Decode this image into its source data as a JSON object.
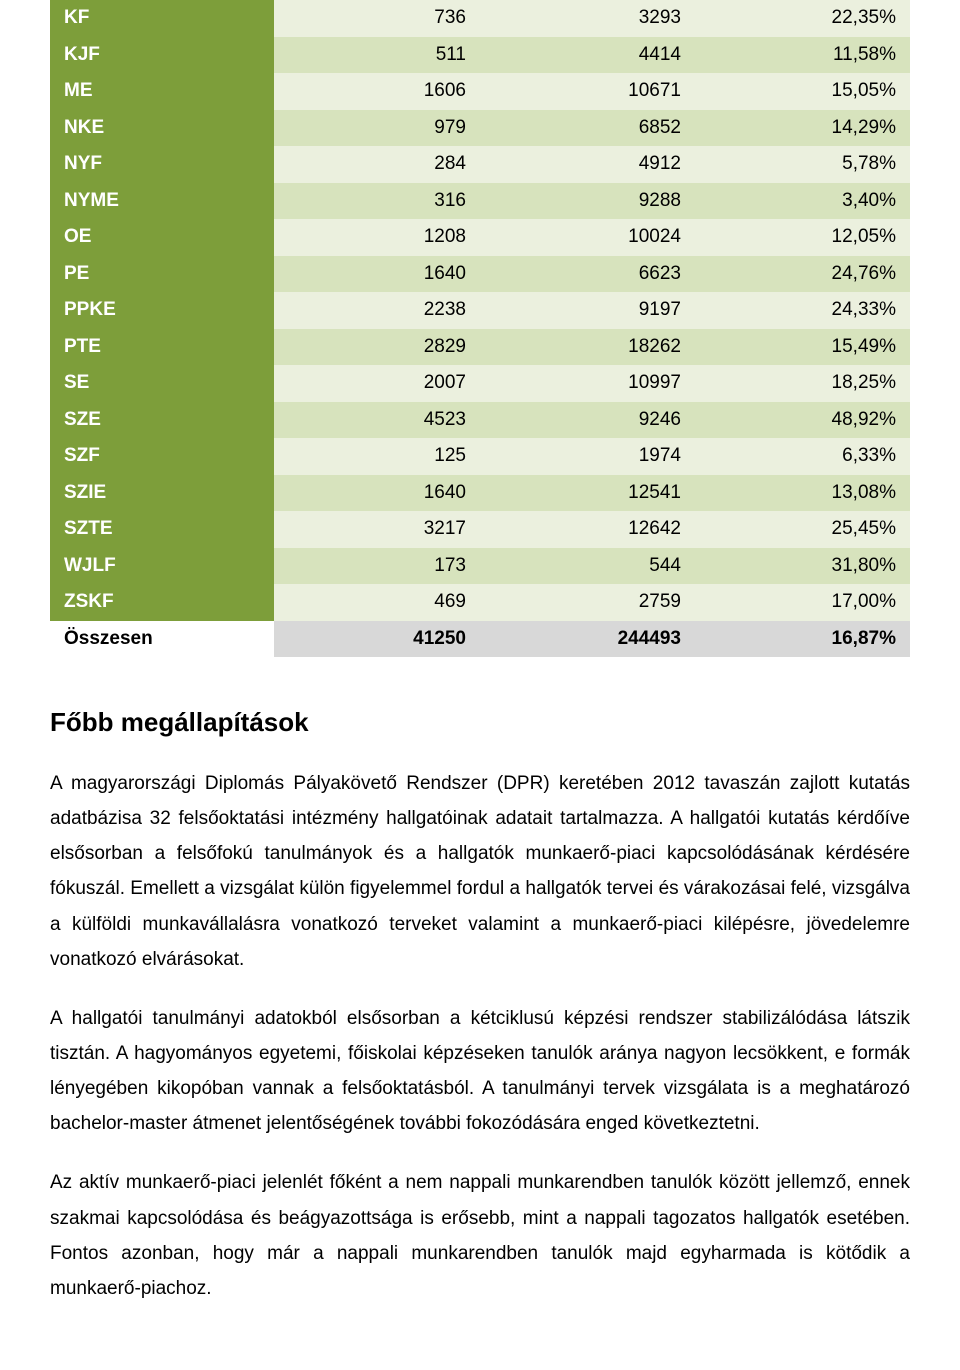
{
  "table": {
    "colors": {
      "label_bg": "#7d9e3a",
      "label_fg": "#ffffff",
      "stripe_even": "#ebf0de",
      "stripe_odd": "#d7e3bd",
      "total_label_bg": "#ffffff",
      "total_cell_bg": "#d8d8d8"
    },
    "column_widths": [
      "26%",
      "24%",
      "25%",
      "25%"
    ],
    "font_size": 19,
    "rows": [
      {
        "label": "KF",
        "v1": "736",
        "v2": "3293",
        "v3": "22,35%",
        "stripe": "even"
      },
      {
        "label": "KJF",
        "v1": "511",
        "v2": "4414",
        "v3": "11,58%",
        "stripe": "odd"
      },
      {
        "label": "ME",
        "v1": "1606",
        "v2": "10671",
        "v3": "15,05%",
        "stripe": "even"
      },
      {
        "label": "NKE",
        "v1": "979",
        "v2": "6852",
        "v3": "14,29%",
        "stripe": "odd"
      },
      {
        "label": "NYF",
        "v1": "284",
        "v2": "4912",
        "v3": "5,78%",
        "stripe": "even"
      },
      {
        "label": "NYME",
        "v1": "316",
        "v2": "9288",
        "v3": "3,40%",
        "stripe": "odd"
      },
      {
        "label": "OE",
        "v1": "1208",
        "v2": "10024",
        "v3": "12,05%",
        "stripe": "even"
      },
      {
        "label": "PE",
        "v1": "1640",
        "v2": "6623",
        "v3": "24,76%",
        "stripe": "odd"
      },
      {
        "label": "PPKE",
        "v1": "2238",
        "v2": "9197",
        "v3": "24,33%",
        "stripe": "even"
      },
      {
        "label": "PTE",
        "v1": "2829",
        "v2": "18262",
        "v3": "15,49%",
        "stripe": "odd"
      },
      {
        "label": "SE",
        "v1": "2007",
        "v2": "10997",
        "v3": "18,25%",
        "stripe": "even"
      },
      {
        "label": "SZE",
        "v1": "4523",
        "v2": "9246",
        "v3": "48,92%",
        "stripe": "odd"
      },
      {
        "label": "SZF",
        "v1": "125",
        "v2": "1974",
        "v3": "6,33%",
        "stripe": "even"
      },
      {
        "label": "SZIE",
        "v1": "1640",
        "v2": "12541",
        "v3": "13,08%",
        "stripe": "odd"
      },
      {
        "label": "SZTE",
        "v1": "3217",
        "v2": "12642",
        "v3": "25,45%",
        "stripe": "even"
      },
      {
        "label": "WJLF",
        "v1": "173",
        "v2": "544",
        "v3": "31,80%",
        "stripe": "odd"
      },
      {
        "label": "ZSKF",
        "v1": "469",
        "v2": "2759",
        "v3": "17,00%",
        "stripe": "even"
      }
    ],
    "total": {
      "label": "Összesen",
      "v1": "41250",
      "v2": "244493",
      "v3": "16,87%"
    }
  },
  "section": {
    "title": "Főbb megállapítások",
    "paragraphs": [
      "A magyarországi Diplomás Pályakövető Rendszer (DPR) keretében 2012 tavaszán zajlott kutatás adatbázisa 32 felsőoktatási intézmény hallgatóinak adatait tartalmazza. A hallgatói kutatás kérdőíve elsősorban a felsőfokú tanulmányok és a hallgatók munkaerő-piaci kapcsolódásának kérdésére fókuszál. Emellett a vizsgálat külön figyelemmel fordul a hallgatók tervei és várakozásai felé, vizsgálva a külföldi munkavállalásra vonatkozó terveket valamint a munkaerő-piaci kilépésre, jövedelemre vonatkozó elvárásokat.",
      "A hallgatói tanulmányi adatokból elsősorban a kétciklusú képzési rendszer stabilizálódása látszik tisztán. A hagyományos egyetemi, főiskolai képzéseken tanulók aránya nagyon lecsökkent, e formák lényegében kikopóban vannak a felsőoktatásból. A tanulmányi tervek vizsgálata is a meghatározó bachelor-master átmenet jelentőségének további fokozódására enged következtetni.",
      "Az aktív munkaerő-piaci jelenlét főként a nem nappali munkarendben tanulók között jellemző, ennek szakmai kapcsolódása és beágyazottsága is erősebb, mint a nappali tagozatos hallgatók esetében. Fontos azonban, hogy már a nappali munkarendben tanulók majd egyharmada is kötődik a munkaerő-piachoz."
    ],
    "title_fontsize": 26,
    "body_fontsize": 19,
    "line_height": 1.85
  }
}
